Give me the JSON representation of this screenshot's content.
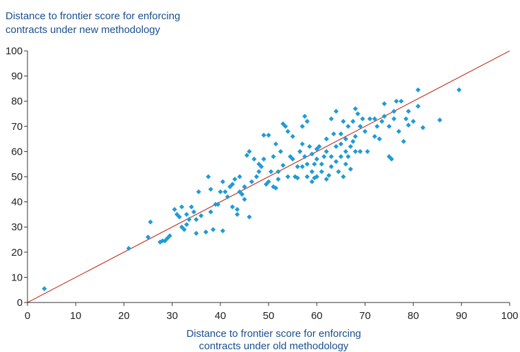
{
  "chart_data": {
    "type": "scatter",
    "title": "",
    "ylabel_lines": [
      "Distance to frontier score for enforcing",
      "contracts under new methodology"
    ],
    "xlabel_lines": [
      "Distance to frontier score for enforcing",
      "contracts under old methodology"
    ],
    "xlim": [
      0,
      100
    ],
    "ylim": [
      0,
      100
    ],
    "xticks": [
      "0",
      "10",
      "20",
      "30",
      "40",
      "50",
      "60",
      "70",
      "80",
      "90",
      "100"
    ],
    "yticks": [
      "0",
      "10",
      "20",
      "30",
      "40",
      "50",
      "60",
      "70",
      "80",
      "90",
      "100"
    ],
    "grid": false,
    "legend": "none",
    "reference_line": {
      "from": [
        0,
        0
      ],
      "to": [
        100,
        100
      ],
      "color": "#c0392b"
    },
    "marker_color": "#1f9bd7",
    "points": [
      [
        3.5,
        5.5
      ],
      [
        21,
        21.5
      ],
      [
        25,
        26
      ],
      [
        25.5,
        32
      ],
      [
        27.5,
        24
      ],
      [
        28,
        24.5
      ],
      [
        28.5,
        24.5
      ],
      [
        29,
        25.5
      ],
      [
        29.5,
        26.5
      ],
      [
        30.5,
        37
      ],
      [
        31,
        35
      ],
      [
        31.5,
        34
      ],
      [
        32,
        30
      ],
      [
        32,
        38
      ],
      [
        32.5,
        29
      ],
      [
        33,
        31
      ],
      [
        33,
        35
      ],
      [
        33.5,
        33
      ],
      [
        34,
        38
      ],
      [
        34.5,
        36
      ],
      [
        35,
        27.5
      ],
      [
        35,
        33
      ],
      [
        35.5,
        44
      ],
      [
        36,
        34.5
      ],
      [
        37,
        28
      ],
      [
        37.5,
        50
      ],
      [
        38,
        36
      ],
      [
        38,
        45
      ],
      [
        38.5,
        29
      ],
      [
        39,
        39
      ],
      [
        39.5,
        39
      ],
      [
        40,
        44
      ],
      [
        40.5,
        48
      ],
      [
        40.5,
        28.5
      ],
      [
        41,
        44
      ],
      [
        41.5,
        42
      ],
      [
        42,
        46
      ],
      [
        42.5,
        47
      ],
      [
        42.5,
        38
      ],
      [
        43,
        49
      ],
      [
        43.5,
        37
      ],
      [
        43.5,
        35
      ],
      [
        44,
        44
      ],
      [
        44,
        50
      ],
      [
        44.5,
        43
      ],
      [
        45,
        46
      ],
      [
        45,
        41
      ],
      [
        45.5,
        58.5
      ],
      [
        46,
        60
      ],
      [
        46,
        34
      ],
      [
        46.5,
        48
      ],
      [
        47,
        57
      ],
      [
        47.5,
        50
      ],
      [
        48,
        52
      ],
      [
        48,
        55
      ],
      [
        48.5,
        54
      ],
      [
        49,
        57
      ],
      [
        49,
        66.5
      ],
      [
        49.5,
        47
      ],
      [
        50,
        48
      ],
      [
        50,
        66.5
      ],
      [
        50.5,
        52
      ],
      [
        51,
        46
      ],
      [
        51,
        58
      ],
      [
        51.5,
        63
      ],
      [
        51.5,
        45.5
      ],
      [
        52,
        49
      ],
      [
        52,
        52
      ],
      [
        52.5,
        60
      ],
      [
        53,
        71
      ],
      [
        53,
        54.5
      ],
      [
        53.5,
        70
      ],
      [
        54,
        50
      ],
      [
        54,
        68
      ],
      [
        54.5,
        58
      ],
      [
        55,
        57
      ],
      [
        55,
        66
      ],
      [
        55.5,
        50
      ],
      [
        56,
        54
      ],
      [
        56,
        49.5
      ],
      [
        56.5,
        60
      ],
      [
        57,
        54
      ],
      [
        57,
        63
      ],
      [
        57,
        70
      ],
      [
        57.5,
        58
      ],
      [
        57.5,
        74
      ],
      [
        58,
        72
      ],
      [
        58,
        55
      ],
      [
        58,
        50
      ],
      [
        58.5,
        62
      ],
      [
        59,
        52
      ],
      [
        59,
        48
      ],
      [
        59,
        59
      ],
      [
        59.5,
        55
      ],
      [
        59.5,
        49.5
      ],
      [
        60,
        61
      ],
      [
        60,
        57
      ],
      [
        60,
        50
      ],
      [
        60.5,
        62
      ],
      [
        61,
        52
      ],
      [
        61,
        55
      ],
      [
        61.5,
        58
      ],
      [
        62,
        49
      ],
      [
        62,
        60
      ],
      [
        62,
        65
      ],
      [
        62.5,
        50.5
      ],
      [
        63,
        58
      ],
      [
        63,
        54
      ],
      [
        63,
        73
      ],
      [
        63.5,
        67
      ],
      [
        64,
        56
      ],
      [
        64,
        62
      ],
      [
        64,
        76
      ],
      [
        64.5,
        52
      ],
      [
        65,
        58
      ],
      [
        65,
        63
      ],
      [
        65,
        67
      ],
      [
        65.5,
        50
      ],
      [
        65.5,
        72
      ],
      [
        66,
        55
      ],
      [
        66,
        60
      ],
      [
        66,
        65
      ],
      [
        66.5,
        58
      ],
      [
        66.5,
        70
      ],
      [
        67,
        62
      ],
      [
        67,
        53
      ],
      [
        67.5,
        72
      ],
      [
        67.5,
        64
      ],
      [
        68,
        77
      ],
      [
        68,
        60
      ],
      [
        68,
        66
      ],
      [
        68.5,
        75
      ],
      [
        69,
        70
      ],
      [
        69,
        60
      ],
      [
        69.5,
        73
      ],
      [
        70,
        68
      ],
      [
        70.5,
        60
      ],
      [
        71,
        73
      ],
      [
        72,
        73
      ],
      [
        72,
        66
      ],
      [
        72.5,
        70
      ],
      [
        73,
        65
      ],
      [
        73.5,
        72
      ],
      [
        74,
        74
      ],
      [
        74,
        79
      ],
      [
        75,
        58
      ],
      [
        75,
        70
      ],
      [
        75.5,
        57
      ],
      [
        76,
        76
      ],
      [
        76,
        73
      ],
      [
        76.5,
        80
      ],
      [
        77,
        68
      ],
      [
        77.5,
        80
      ],
      [
        78,
        64
      ],
      [
        78.5,
        73
      ],
      [
        79,
        76
      ],
      [
        79,
        70.5
      ],
      [
        80,
        72
      ],
      [
        81,
        78
      ],
      [
        81,
        84.5
      ],
      [
        82,
        69.5
      ],
      [
        85.5,
        72.5
      ],
      [
        89.5,
        84.5
      ]
    ]
  }
}
